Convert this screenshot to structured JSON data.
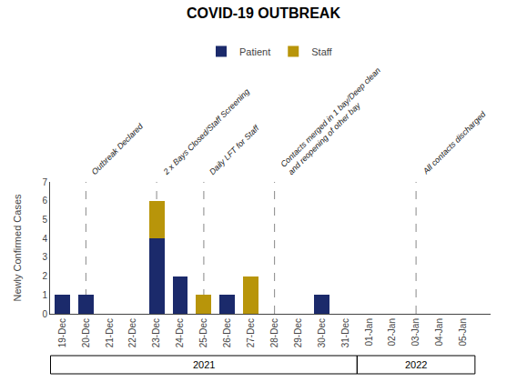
{
  "chart_data": {
    "type": "bar",
    "title": "COVID-19 OUTBREAK",
    "ylabel": "Newly Confirmed Cases",
    "stacked": true,
    "categories": [
      "19-Dec",
      "20-Dec",
      "21-Dec",
      "22-Dec",
      "23-Dec",
      "24-Dec",
      "25-Dec",
      "26-Dec",
      "27-Dec",
      "28-Dec",
      "29-Dec",
      "30-Dec",
      "31-Dec",
      "01-Jan",
      "02-Jan",
      "03-Jan",
      "04-Jan",
      "05-Jan"
    ],
    "series": [
      {
        "name": "Patient",
        "color": "#1B2A6B",
        "values": [
          1,
          1,
          0,
          0,
          4,
          2,
          0,
          1,
          0,
          0,
          0,
          1,
          0,
          0,
          0,
          0,
          0,
          0
        ]
      },
      {
        "name": "Staff",
        "color": "#B8950A",
        "values": [
          0,
          0,
          0,
          0,
          2,
          0,
          1,
          0,
          2,
          0,
          0,
          0,
          0,
          0,
          0,
          0,
          0,
          0
        ]
      }
    ],
    "ylim": [
      0,
      7
    ],
    "yticks": [
      0,
      1,
      2,
      3,
      4,
      5,
      6,
      7
    ],
    "grid": false,
    "legend": "top",
    "annotations": [
      {
        "text": "Outbreak Declared",
        "x": "20-Dec"
      },
      {
        "text": "2 x Bays Closed/Staff Screening",
        "x": "23-Dec"
      },
      {
        "text": "Daily LFT for Staff",
        "x": "25-Dec"
      },
      {
        "text": "Contacts merged in 1 bay/Deep clean\nand reopening of other bay",
        "x": "28-Dec"
      },
      {
        "text": "All contacts discharged",
        "x": "03-Jan"
      }
    ],
    "x_groups": [
      {
        "text": "2021",
        "from": "19-Dec",
        "to": "31-Dec"
      },
      {
        "text": "2022",
        "from": "01-Jan",
        "to": "05-Jan"
      }
    ]
  }
}
